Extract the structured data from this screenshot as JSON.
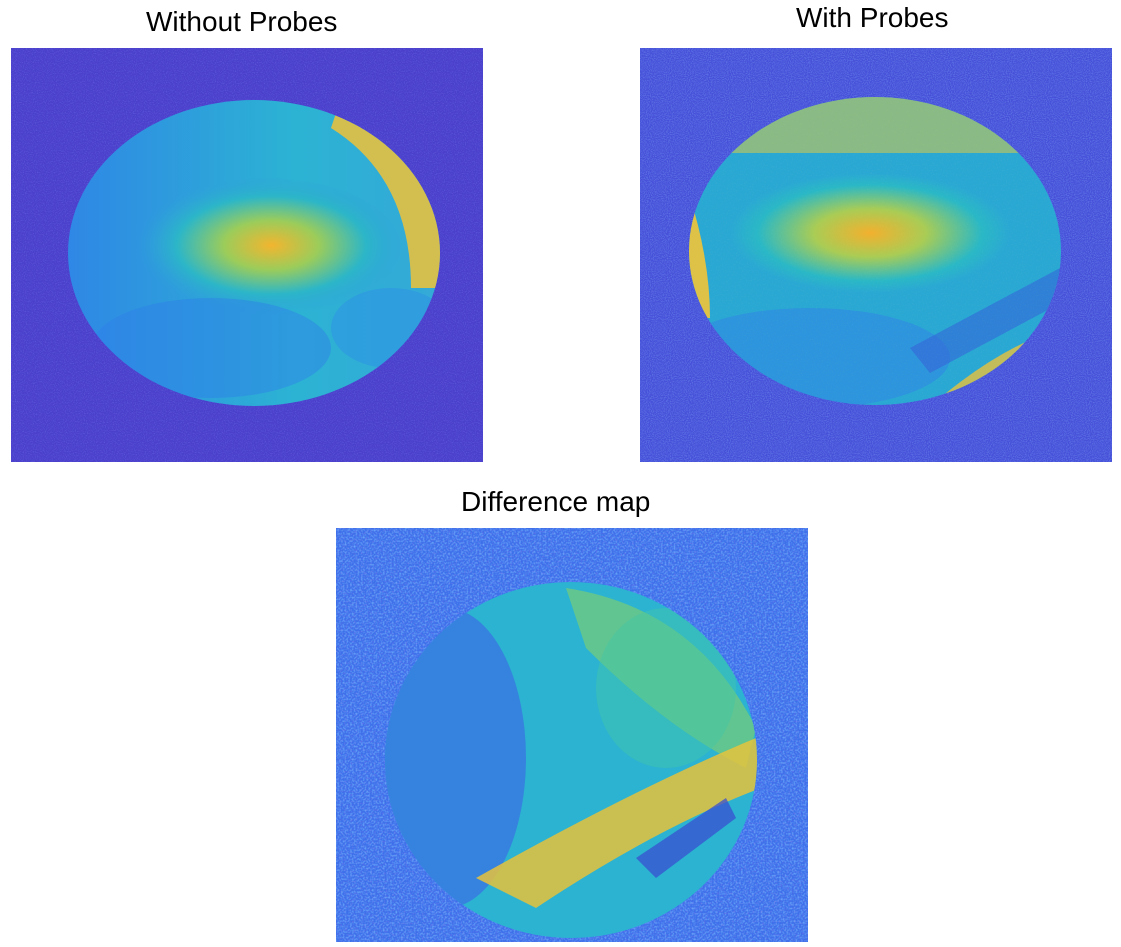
{
  "panels": [
    {
      "title": "Without Probes"
    },
    {
      "title": "With Probes"
    },
    {
      "title": "Difference map"
    }
  ],
  "colors": {
    "background_blue": "#4a3fcc",
    "noise_blue": "#3f6ae8",
    "cyan": "#21b4d6",
    "green": "#7bd07a",
    "yellow": "#f6c83a",
    "orange": "#f2a92e"
  }
}
